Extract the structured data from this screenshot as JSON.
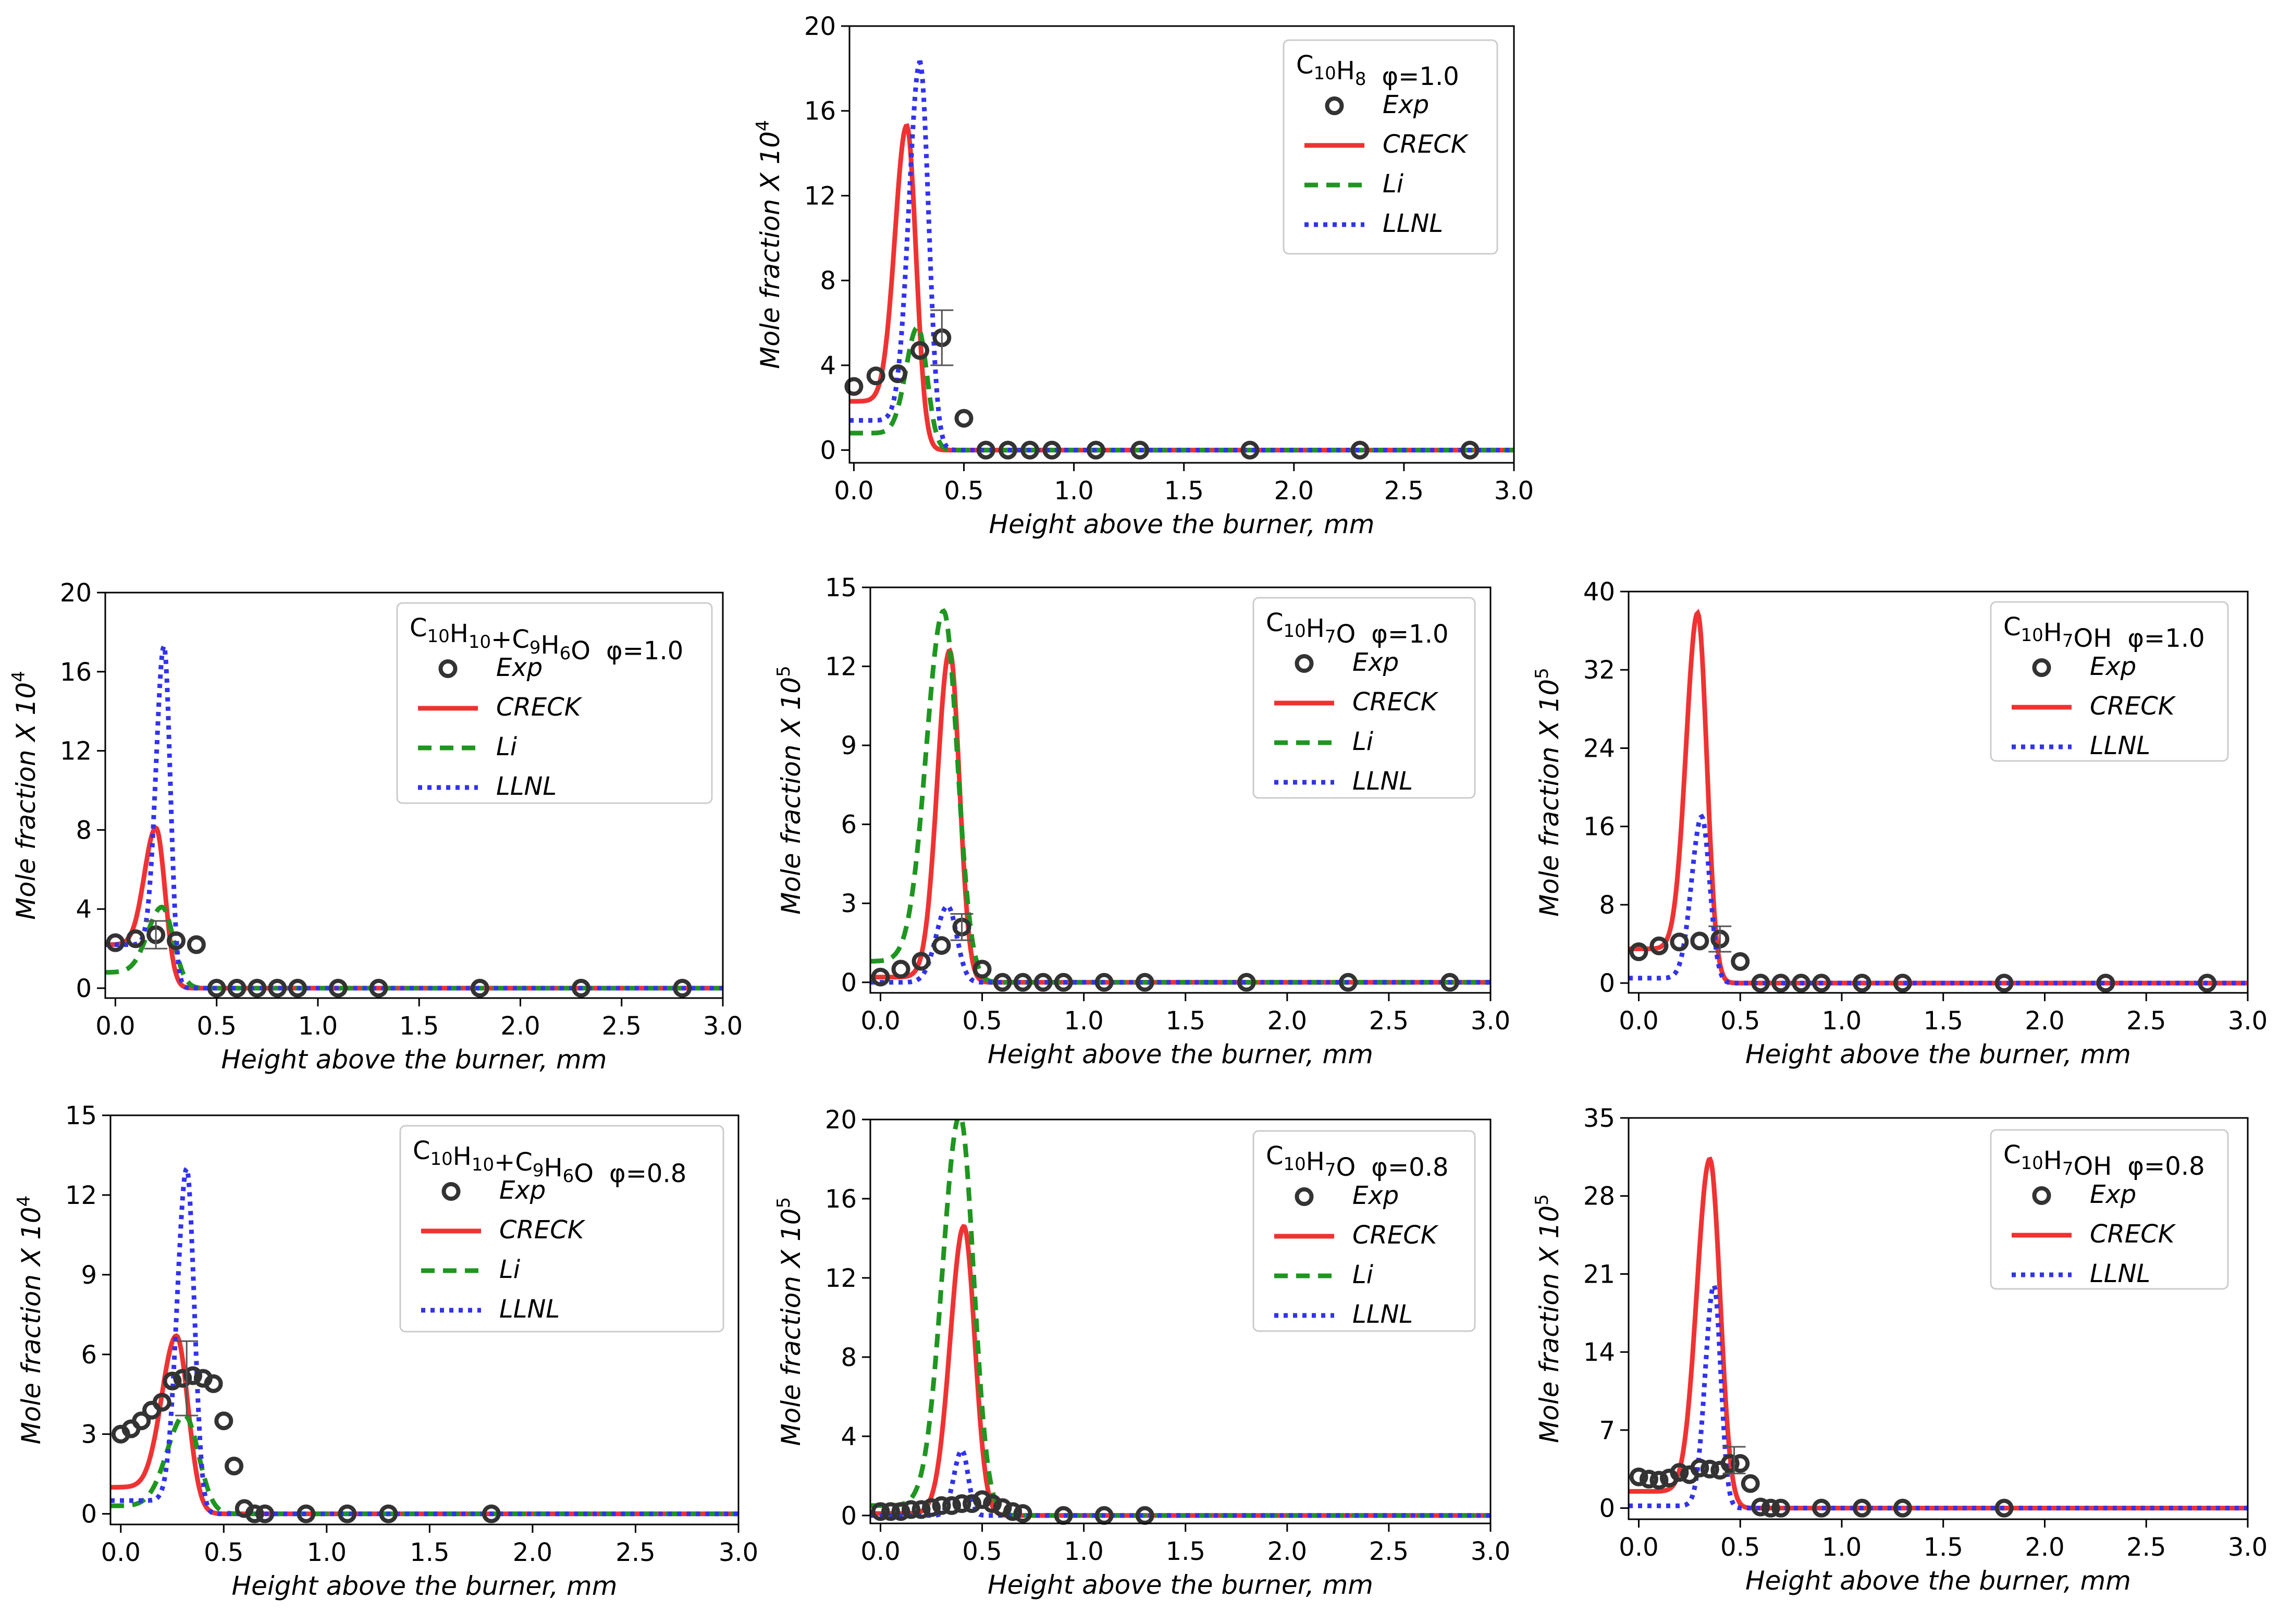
{
  "colors": {
    "creck": "#f03232",
    "li": "#1e9620",
    "llnl": "#3232f0",
    "exp": "#333333",
    "axis": "#000000"
  },
  "chart_data": [
    {
      "id": "p1",
      "type": "line",
      "species": "C10H8",
      "phi": "φ=1.0",
      "xlabel": "Height above the burner, mm",
      "ylabel": "Mole fraction X 10",
      "yexp": "4",
      "xlim": [
        -0.02,
        3.0
      ],
      "ylim": [
        -0.6,
        20
      ],
      "xticks": [
        "0.0",
        "0.5",
        "1.0",
        "1.5",
        "2.0",
        "2.5",
        "3.0"
      ],
      "yticks": [
        "0",
        "4",
        "8",
        "12",
        "16",
        "20"
      ],
      "legend": [
        "Exp",
        "CRECK",
        "Li",
        "LLNL"
      ],
      "series": [
        {
          "name": "CRECK",
          "peak_x": 0.24,
          "peak_y": 15.3,
          "width": 0.075,
          "base": 2.3,
          "cut_x": 0.38
        },
        {
          "name": "Li",
          "peak_x": 0.29,
          "peak_y": 5.8,
          "width": 0.075,
          "base": 0.8,
          "cut_x": 0.4
        },
        {
          "name": "LLNL",
          "peak_x": 0.3,
          "peak_y": 18.3,
          "width": 0.07,
          "base": 1.4,
          "cut_x": 0.36
        }
      ],
      "exp": {
        "x": [
          0.0,
          0.1,
          0.2,
          0.3,
          0.4,
          0.5,
          0.6,
          0.7,
          0.8,
          0.9,
          1.1,
          1.3,
          1.8,
          2.3,
          2.8
        ],
        "y": [
          3.0,
          3.5,
          3.6,
          4.7,
          5.3,
          1.5,
          0,
          0,
          0,
          0,
          0,
          0,
          0,
          0,
          0
        ]
      },
      "errorbar": {
        "x": 0.4,
        "y": 5.3,
        "err": 1.3
      }
    },
    {
      "id": "p2",
      "type": "line",
      "species": "C10H10+C9H6O",
      "phi": "φ=1.0",
      "xlabel": "Height above the burner, mm",
      "ylabel": "Mole fraction X 10",
      "yexp": "4",
      "xlim": [
        -0.05,
        3.0
      ],
      "ylim": [
        -0.5,
        20
      ],
      "xticks": [
        "0.0",
        "0.5",
        "1.0",
        "1.5",
        "2.0",
        "2.5",
        "3.0"
      ],
      "yticks": [
        "0",
        "4",
        "8",
        "12",
        "16",
        "20"
      ],
      "legend": [
        "Exp",
        "CRECK",
        "Li",
        "LLNL"
      ],
      "series": [
        {
          "name": "CRECK",
          "peak_x": 0.2,
          "peak_y": 8.1,
          "width": 0.08,
          "base": 2.2,
          "cut_x": 0.3
        },
        {
          "name": "Li",
          "peak_x": 0.23,
          "peak_y": 4.1,
          "width": 0.1,
          "base": 0.8,
          "cut_x": 0.4
        },
        {
          "name": "LLNL",
          "peak_x": 0.24,
          "peak_y": 17.3,
          "width": 0.055,
          "base": 2.2,
          "cut_x": 0.26
        }
      ],
      "exp": {
        "x": [
          0.0,
          0.1,
          0.2,
          0.3,
          0.4,
          0.5,
          0.6,
          0.7,
          0.8,
          0.9,
          1.1,
          1.3,
          1.8,
          2.3,
          2.8
        ],
        "y": [
          2.3,
          2.5,
          2.7,
          2.4,
          2.2,
          0,
          0,
          0,
          0,
          0,
          0,
          0,
          0,
          0,
          0
        ]
      },
      "errorbar": {
        "x": 0.2,
        "y": 2.7,
        "err": 0.7
      }
    },
    {
      "id": "p3",
      "type": "line",
      "species": "C10H7O",
      "phi": "φ=1.0",
      "xlabel": "Height above the burner, mm",
      "ylabel": "Mole fraction X 10",
      "yexp": "5",
      "xlim": [
        -0.05,
        3.0
      ],
      "ylim": [
        -0.4,
        15
      ],
      "xticks": [
        "0.0",
        "0.5",
        "1.0",
        "1.5",
        "2.0",
        "2.5",
        "3.0"
      ],
      "yticks": [
        "0",
        "3",
        "6",
        "9",
        "12",
        "15"
      ],
      "legend": [
        "Exp",
        "CRECK",
        "Li",
        "LLNL"
      ],
      "series": [
        {
          "name": "CRECK",
          "peak_x": 0.34,
          "peak_y": 12.6,
          "width": 0.085,
          "base": 0.2,
          "cut_x": 0.38
        },
        {
          "name": "Li",
          "peak_x": 0.31,
          "peak_y": 14.1,
          "width": 0.12,
          "base": 0.8,
          "cut_x": 0.34
        },
        {
          "name": "LLNL",
          "peak_x": 0.33,
          "peak_y": 2.9,
          "width": 0.08,
          "base": 0.0,
          "cut_x": 0.36
        }
      ],
      "exp": {
        "x": [
          0.0,
          0.1,
          0.2,
          0.3,
          0.4,
          0.5,
          0.6,
          0.7,
          0.8,
          0.9,
          1.1,
          1.3,
          1.8,
          2.3,
          2.8
        ],
        "y": [
          0.2,
          0.5,
          0.8,
          1.4,
          2.1,
          0.5,
          0,
          0,
          0,
          0,
          0,
          0,
          0,
          0,
          0
        ]
      },
      "errorbar": {
        "x": 0.4,
        "y": 2.1,
        "err": 0.5
      }
    },
    {
      "id": "p4",
      "type": "line",
      "species": "C10H7OH",
      "phi": "φ=1.0",
      "xlabel": "Height above the burner, mm",
      "ylabel": "Mole fraction X 10",
      "yexp": "5",
      "xlim": [
        -0.05,
        3.0
      ],
      "ylim": [
        -1,
        40
      ],
      "xticks": [
        "0.0",
        "0.5",
        "1.0",
        "1.5",
        "2.0",
        "2.5",
        "3.0"
      ],
      "yticks": [
        "0",
        "8",
        "16",
        "24",
        "32",
        "40"
      ],
      "legend": [
        "Exp",
        "CRECK",
        "LLNL"
      ],
      "series": [
        {
          "name": "CRECK",
          "peak_x": 0.29,
          "peak_y": 37.8,
          "width": 0.08,
          "base": 3.5,
          "cut_x": 0.34
        },
        {
          "name": "LLNL",
          "peak_x": 0.31,
          "peak_y": 17.0,
          "width": 0.07,
          "base": 0.5,
          "cut_x": 0.34
        }
      ],
      "exp": {
        "x": [
          0.0,
          0.1,
          0.2,
          0.3,
          0.4,
          0.5,
          0.6,
          0.7,
          0.8,
          0.9,
          1.1,
          1.3,
          1.8,
          2.3,
          2.8
        ],
        "y": [
          3.2,
          3.8,
          4.2,
          4.3,
          4.5,
          2.2,
          0,
          0,
          0,
          0,
          0,
          0,
          0,
          0,
          0
        ]
      },
      "errorbar": {
        "x": 0.4,
        "y": 4.5,
        "err": 1.3
      }
    },
    {
      "id": "p5",
      "type": "line",
      "species": "C10H10+C9H6O",
      "phi": "φ=0.8",
      "xlabel": "Height above the burner, mm",
      "ylabel": "Mole fraction X 10",
      "yexp": "4",
      "xlim": [
        -0.05,
        3.0
      ],
      "ylim": [
        -0.4,
        15
      ],
      "xticks": [
        "0.0",
        "0.5",
        "1.0",
        "1.5",
        "2.0",
        "2.5",
        "3.0"
      ],
      "yticks": [
        "0",
        "3",
        "6",
        "9",
        "12",
        "15"
      ],
      "legend": [
        "Exp",
        "CRECK",
        "Li",
        "LLNL"
      ],
      "series": [
        {
          "name": "CRECK",
          "peak_x": 0.27,
          "peak_y": 6.7,
          "width": 0.1,
          "base": 1.0,
          "cut_x": 0.3
        },
        {
          "name": "Li",
          "peak_x": 0.31,
          "peak_y": 3.7,
          "width": 0.12,
          "base": 0.3,
          "cut_x": 0.34
        },
        {
          "name": "LLNL",
          "peak_x": 0.32,
          "peak_y": 13.0,
          "width": 0.065,
          "base": 0.5,
          "cut_x": 0.33
        }
      ],
      "exp": {
        "x": [
          0.0,
          0.05,
          0.1,
          0.15,
          0.2,
          0.25,
          0.3,
          0.35,
          0.4,
          0.45,
          0.5,
          0.55,
          0.6,
          0.65,
          0.7,
          0.9,
          1.1,
          1.3,
          1.8
        ],
        "y": [
          3.0,
          3.2,
          3.5,
          3.9,
          4.2,
          5.0,
          5.1,
          5.2,
          5.1,
          4.9,
          3.5,
          1.8,
          0.2,
          0,
          0,
          0,
          0,
          0,
          0
        ]
      },
      "errorbar": {
        "x": 0.32,
        "y": 5.1,
        "err": 1.4
      }
    },
    {
      "id": "p6",
      "type": "line",
      "species": "C10H7O",
      "phi": "φ=0.8",
      "xlabel": "Height above the burner, mm",
      "ylabel": "Mole fraction X 10",
      "yexp": "5",
      "xlim": [
        -0.05,
        3.0
      ],
      "ylim": [
        -0.4,
        20
      ],
      "xticks": [
        "0.0",
        "0.5",
        "1.0",
        "1.5",
        "2.0",
        "2.5",
        "3.0"
      ],
      "yticks": [
        "0",
        "4",
        "8",
        "12",
        "16",
        "20"
      ],
      "legend": [
        "Exp",
        "CRECK",
        "Li",
        "LLNL"
      ],
      "series": [
        {
          "name": "CRECK",
          "peak_x": 0.41,
          "peak_y": 14.6,
          "width": 0.095,
          "base": 0.1,
          "cut_x": 0.44
        },
        {
          "name": "Li",
          "peak_x": 0.39,
          "peak_y": 20.2,
          "width": 0.12,
          "base": 0.5,
          "cut_x": 0.42
        },
        {
          "name": "LLNL",
          "peak_x": 0.4,
          "peak_y": 3.3,
          "width": 0.055,
          "base": 0.0,
          "cut_x": 0.4
        }
      ],
      "exp": {
        "x": [
          0.0,
          0.05,
          0.1,
          0.15,
          0.2,
          0.25,
          0.3,
          0.35,
          0.4,
          0.45,
          0.5,
          0.55,
          0.6,
          0.65,
          0.7,
          0.9,
          1.1,
          1.3
        ],
        "y": [
          0.2,
          0.2,
          0.2,
          0.3,
          0.3,
          0.4,
          0.5,
          0.5,
          0.6,
          0.6,
          0.8,
          0.6,
          0.4,
          0.2,
          0.1,
          0,
          0,
          0
        ]
      },
      "errorbar": null
    },
    {
      "id": "p7",
      "type": "line",
      "species": "C10H7OH",
      "phi": "φ=0.8",
      "xlabel": "Height above the burner, mm",
      "ylabel": "Mole fraction X 10",
      "yexp": "5",
      "xlim": [
        -0.05,
        3.0
      ],
      "ylim": [
        -1,
        35
      ],
      "xticks": [
        "0.0",
        "0.5",
        "1.0",
        "1.5",
        "2.0",
        "2.5",
        "3.0"
      ],
      "yticks": [
        "0",
        "7",
        "14",
        "21",
        "28",
        "35"
      ],
      "legend": [
        "Exp",
        "CRECK",
        "LLNL"
      ],
      "series": [
        {
          "name": "CRECK",
          "peak_x": 0.35,
          "peak_y": 31.3,
          "width": 0.09,
          "base": 1.5,
          "cut_x": 0.38
        },
        {
          "name": "LLNL",
          "peak_x": 0.37,
          "peak_y": 20.0,
          "width": 0.06,
          "base": 0.2,
          "cut_x": 0.38
        }
      ],
      "exp": {
        "x": [
          0.0,
          0.05,
          0.1,
          0.15,
          0.2,
          0.25,
          0.3,
          0.35,
          0.4,
          0.45,
          0.5,
          0.55,
          0.6,
          0.65,
          0.7,
          0.9,
          1.1,
          1.3,
          1.8
        ],
        "y": [
          2.8,
          2.6,
          2.5,
          2.7,
          3.2,
          3.0,
          3.6,
          3.5,
          3.4,
          4.0,
          4.0,
          2.2,
          0.1,
          0,
          0,
          0,
          0,
          0,
          0
        ]
      },
      "errorbar": {
        "x": 0.47,
        "y": 4.3,
        "err": 1.2
      }
    }
  ]
}
